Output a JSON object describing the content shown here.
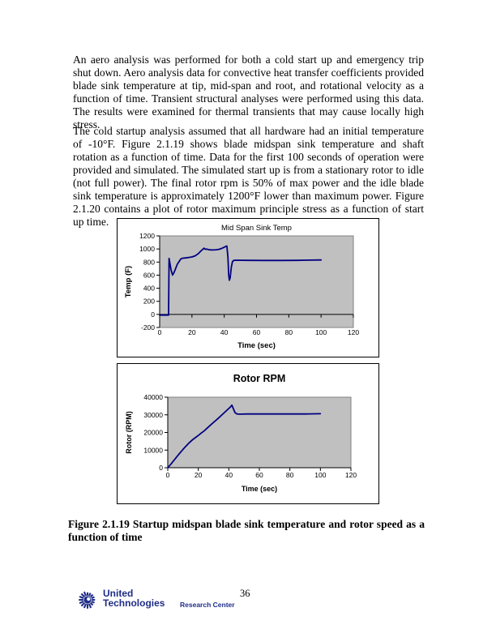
{
  "page": {
    "paragraph1": "An aero analysis was performed for both a cold start up and emergency trip shut down.  Aero analysis data for convective heat transfer coefficients provided blade sink temperature at tip, mid-span and root, and rotational velocity as a function of time.  Transient structural analyses were performed using this data.  The results were examined for thermal transients that may cause locally high stress.",
    "paragraph2": "The cold startup analysis assumed that all hardware had an initial temperature of -10°F.  Figure 2.1.19 shows blade midspan sink temperature and shaft rotation as a function of time.  Data for the first 100 seconds of operation were provided and simulated.  The simulated start up is from a stationary rotor to idle (not full power).  The final rotor rpm is 50% of max power and the idle blade sink temperature is approximately 1200°F lower than maximum power.  Figure 2.1.20 contains a plot of rotor maximum principle stress as a function of start up time.",
    "caption": "Figure 2.1.19 Startup midspan blade sink temperature and rotor speed as a function of time",
    "page_number": "36"
  },
  "footer": {
    "logo_line1": "United",
    "logo_line2": "Technologies",
    "logo_sub": "Research Center",
    "logo_color": "#1f2d87"
  },
  "chart_data": [
    {
      "type": "line",
      "title": "Mid Span Sink Temp",
      "title_bold": false,
      "xlabel": "Time (sec)",
      "ylabel": "Temp (F)",
      "xlim": [
        0,
        120
      ],
      "ylim": [
        -200,
        1200
      ],
      "xticks": [
        0,
        20,
        40,
        60,
        80,
        100,
        120
      ],
      "yticks": [
        -200,
        0,
        200,
        400,
        600,
        800,
        1000,
        1200
      ],
      "x_axis_at": 0,
      "grid": false,
      "legend": "none",
      "plot_bg": "#c0c0c0",
      "line_color": "#000080",
      "series": [
        {
          "name": "Mid Span Sink Temp",
          "points": [
            [
              0,
              -10
            ],
            [
              5.5,
              -10
            ],
            [
              5.8,
              855
            ],
            [
              7,
              690
            ],
            [
              8,
              600
            ],
            [
              9,
              645
            ],
            [
              11,
              770
            ],
            [
              13,
              845
            ],
            [
              14,
              858
            ],
            [
              16,
              863
            ],
            [
              18,
              870
            ],
            [
              20,
              878
            ],
            [
              22,
              895
            ],
            [
              24,
              930
            ],
            [
              26,
              980
            ],
            [
              27.5,
              1012
            ],
            [
              28.2,
              995
            ],
            [
              29,
              998
            ],
            [
              31,
              987
            ],
            [
              33,
              985
            ],
            [
              35,
              988
            ],
            [
              37,
              995
            ],
            [
              39,
              1015
            ],
            [
              41,
              1040
            ],
            [
              41.6,
              1045
            ],
            [
              42.3,
              880
            ],
            [
              42.8,
              600
            ],
            [
              43.2,
              522
            ],
            [
              43.7,
              560
            ],
            [
              44.4,
              720
            ],
            [
              45.1,
              805
            ],
            [
              45.8,
              825
            ],
            [
              47,
              828
            ],
            [
              55,
              826
            ],
            [
              65,
              825
            ],
            [
              75,
              825
            ],
            [
              85,
              826
            ],
            [
              93,
              829
            ],
            [
              100,
              832
            ]
          ]
        }
      ]
    },
    {
      "type": "line",
      "title": "Rotor RPM",
      "title_bold": true,
      "xlabel": "Time (sec)",
      "ylabel": "Rotor (RPM)",
      "xlim": [
        0,
        120
      ],
      "ylim": [
        0,
        40000
      ],
      "xticks": [
        0,
        20,
        40,
        60,
        80,
        100,
        120
      ],
      "yticks": [
        0,
        10000,
        20000,
        30000,
        40000
      ],
      "x_axis_at": 0,
      "grid": false,
      "legend": "none",
      "plot_bg": "#c0c0c0",
      "line_color": "#000080",
      "series": [
        {
          "name": "Rotor RPM",
          "points": [
            [
              0,
              0
            ],
            [
              2,
              2000
            ],
            [
              4,
              4100
            ],
            [
              6,
              6300
            ],
            [
              8,
              8400
            ],
            [
              10,
              10400
            ],
            [
              12,
              12300
            ],
            [
              14,
              14100
            ],
            [
              16,
              15700
            ],
            [
              18,
              17000
            ],
            [
              20,
              18300
            ],
            [
              22,
              19700
            ],
            [
              24,
              21000
            ],
            [
              26,
              22600
            ],
            [
              28,
              24200
            ],
            [
              30,
              25700
            ],
            [
              32,
              27200
            ],
            [
              34,
              28800
            ],
            [
              36,
              30400
            ],
            [
              38,
              32000
            ],
            [
              40,
              33600
            ],
            [
              41,
              34400
            ],
            [
              42,
              35500
            ],
            [
              43,
              33400
            ],
            [
              44,
              31300
            ],
            [
              45,
              30600
            ],
            [
              46,
              30400
            ],
            [
              48,
              30400
            ],
            [
              52,
              30480
            ],
            [
              60,
              30500
            ],
            [
              70,
              30500
            ],
            [
              80,
              30500
            ],
            [
              90,
              30500
            ],
            [
              100,
              30600
            ]
          ]
        }
      ]
    }
  ]
}
